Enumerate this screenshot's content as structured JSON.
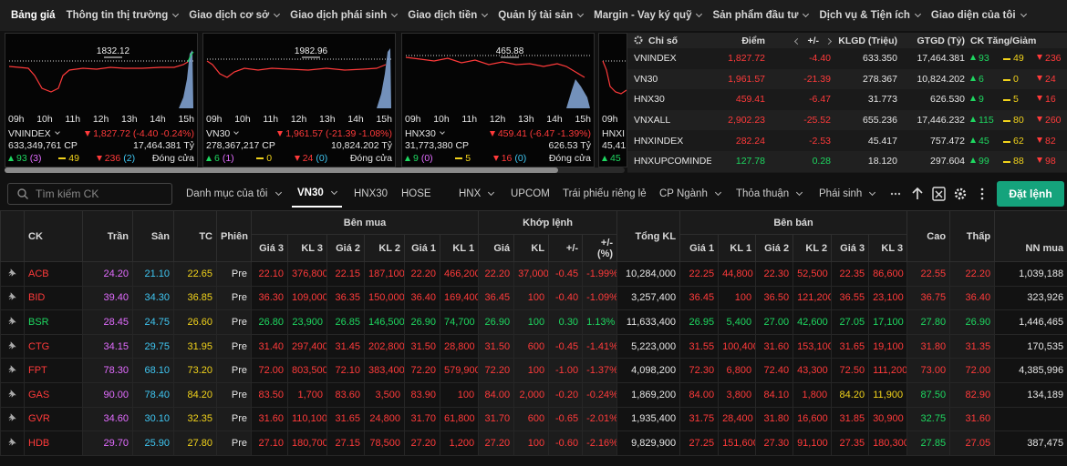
{
  "nav": {
    "active": "Bảng giá",
    "items": [
      "Bảng giá",
      "Thông tin thị trường",
      "Giao dịch cơ sở",
      "Giao dịch phái sinh",
      "Giao dịch tiền",
      "Quản lý tài sản",
      "Margin - Vay ký quỹ",
      "Sản phẩm đầu tư",
      "Dịch vụ & Tiện ích",
      "Giao diện của tôi"
    ]
  },
  "mini_charts": {
    "time_labels": [
      "09h",
      "10h",
      "11h",
      "12h",
      "13h",
      "14h",
      "15h"
    ],
    "panels": [
      {
        "name": "VNINDEX",
        "peak": "1832.12",
        "change": "1,827.72 (-4.40 -0.24%)",
        "volume": "633,349,761 CP",
        "value": "17,464.381 Tỷ",
        "up": "93",
        "ceiling": "(3)",
        "unchanged": "49",
        "down": "236",
        "floor": "(2)",
        "status": "Đóng cửa"
      },
      {
        "name": "VN30",
        "peak": "1982.96",
        "change": "1,961.57 (-21.39 -1.08%)",
        "volume": "278,367,217 CP",
        "value": "10,824.202 Tỷ",
        "up": "6",
        "ceiling": "(1)",
        "unchanged": "0",
        "down": "24",
        "floor": "(0)",
        "status": "Đóng cửa"
      },
      {
        "name": "HNX30",
        "peak": "465.88",
        "change": "459.41 (-6.47 -1.39%)",
        "volume": "31,773,380 CP",
        "value": "626.53 Tỷ",
        "up": "9",
        "ceiling": "(0)",
        "unchanged": "5",
        "down": "16",
        "floor": "(0)",
        "status": "Đóng cửa"
      },
      {
        "name": "HNXI",
        "volume": "45,41",
        "up": "45"
      }
    ]
  },
  "index_table": {
    "headers": [
      "Chỉ số",
      "Điểm",
      "+/-",
      "KLGD (Triệu)",
      "GTGD (Tỷ)",
      "CK Tăng/Giảm"
    ],
    "rows": [
      [
        "VNINDEX",
        "1,827.72",
        "-4.40",
        "633.350",
        "17,464.381",
        "93",
        "49",
        "236"
      ],
      [
        "VN30",
        "1,961.57",
        "-21.39",
        "278.367",
        "10,824.202",
        "6",
        "0",
        "24"
      ],
      [
        "HNX30",
        "459.41",
        "-6.47",
        "31.773",
        "626.530",
        "9",
        "5",
        "16"
      ],
      [
        "VNXALL",
        "2,902.23",
        "-25.52",
        "655.236",
        "17,446.232",
        "115",
        "80",
        "260"
      ],
      [
        "HNXINDEX",
        "282.24",
        "-2.53",
        "45.417",
        "757.472",
        "45",
        "62",
        "82"
      ],
      [
        "HNXUPCOMINDE",
        "127.78",
        "0.28",
        "18.120",
        "297.604",
        "99",
        "88",
        "98"
      ]
    ]
  },
  "toolbar": {
    "search_placeholder": "Tìm kiếm CK",
    "active_tab": "VN30",
    "tabs": [
      "Danh mục của tôi",
      "VN30",
      "HNX30",
      "HOSE",
      "HNX",
      "UPCOM",
      "Trái phiếu riêng lẻ",
      "CP Ngành",
      "Thỏa thuận",
      "Phái sinh"
    ],
    "order_button": "Đặt lệnh"
  },
  "board": {
    "group_headers": [
      "Bên mua",
      "Khớp lệnh",
      "Bên bán"
    ],
    "headers": [
      "CK",
      "Trần",
      "Sàn",
      "TC",
      "Phiên",
      "Giá 3",
      "KL 3",
      "Giá 2",
      "KL 2",
      "Giá 1",
      "KL 1",
      "Giá",
      "KL",
      "+/-",
      "+/- (%)",
      "Tổng KL",
      "Giá 1",
      "KL 1",
      "Giá 2",
      "KL 2",
      "Giá 3",
      "KL 3",
      "Cao",
      "Thấp",
      "NN mua"
    ],
    "rows": [
      [
        "ACB",
        "24.20",
        "21.10",
        "22.65",
        "Pre",
        "22.10",
        "376,800",
        "22.15",
        "187,100",
        "22.20",
        "466,200",
        "22.20",
        "37,000",
        "-0.45",
        "-1.99%",
        "10,284,000",
        "22.25",
        "44,800",
        "22.30",
        "52,500",
        "22.35",
        "86,600",
        "22.55",
        "22.20",
        "1,039,188"
      ],
      [
        "BID",
        "39.40",
        "34.30",
        "36.85",
        "Pre",
        "36.30",
        "109,000",
        "36.35",
        "150,000",
        "36.40",
        "169,400",
        "36.45",
        "100",
        "-0.40",
        "-1.09%",
        "3,257,400",
        "36.45",
        "100",
        "36.50",
        "121,200",
        "36.55",
        "23,100",
        "36.75",
        "36.40",
        "323,926"
      ],
      [
        "BSR",
        "28.45",
        "24.75",
        "26.60",
        "Pre",
        "26.80",
        "23,900",
        "26.85",
        "146,500",
        "26.90",
        "74,700",
        "26.90",
        "100",
        "0.30",
        "1.13%",
        "11,633,400",
        "26.95",
        "5,400",
        "27.00",
        "42,600",
        "27.05",
        "17,100",
        "27.80",
        "26.90",
        "1,446,465"
      ],
      [
        "CTG",
        "34.15",
        "29.75",
        "31.95",
        "Pre",
        "31.40",
        "297,400",
        "31.45",
        "202,800",
        "31.50",
        "28,800",
        "31.50",
        "600",
        "-0.45",
        "-1.41%",
        "5,223,000",
        "31.55",
        "100,400",
        "31.60",
        "153,100",
        "31.65",
        "19,100",
        "31.80",
        "31.35",
        "170,535"
      ],
      [
        "FPT",
        "78.30",
        "68.10",
        "73.20",
        "Pre",
        "72.00",
        "803,500",
        "72.10",
        "383,400",
        "72.20",
        "579,900",
        "72.20",
        "100",
        "-1.00",
        "-1.37%",
        "4,098,200",
        "72.30",
        "6,800",
        "72.40",
        "43,300",
        "72.50",
        "111,200",
        "73.00",
        "72.00",
        "4,385,996"
      ],
      [
        "GAS",
        "90.00",
        "78.40",
        "84.20",
        "Pre",
        "83.50",
        "1,700",
        "83.60",
        "3,500",
        "83.90",
        "100",
        "84.00",
        "2,000",
        "-0.20",
        "-0.24%",
        "1,869,200",
        "84.00",
        "3,800",
        "84.10",
        "1,800",
        "84.20",
        "11,900",
        "87.50",
        "82.90",
        "134,189"
      ],
      [
        "GVR",
        "34.60",
        "30.10",
        "32.35",
        "Pre",
        "31.60",
        "110,100",
        "31.65",
        "24,800",
        "31.70",
        "61,800",
        "31.70",
        "600",
        "-0.65",
        "-2.01%",
        "1,935,400",
        "31.75",
        "28,400",
        "31.80",
        "16,600",
        "31.85",
        "30,900",
        "32.75",
        "31.60",
        null
      ],
      [
        "HDB",
        "29.70",
        "25.90",
        "27.80",
        "Pre",
        "27.10",
        "180,700",
        "27.15",
        "78,500",
        "27.20",
        "1,200",
        "27.20",
        "100",
        "-0.60",
        "-2.16%",
        "9,829,900",
        "27.25",
        "151,600",
        "27.30",
        "91,100",
        "27.35",
        "180,300",
        "27.85",
        "27.05",
        "387,475"
      ]
    ]
  }
}
